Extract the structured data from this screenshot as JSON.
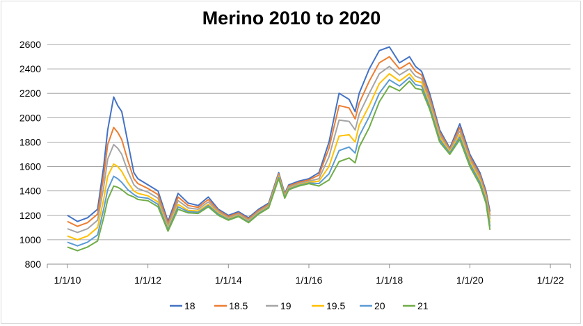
{
  "chart_data": {
    "type": "line",
    "title": "Merino 2010 to 2020",
    "xlabel": "",
    "ylabel": "",
    "ylim": [
      800,
      2600
    ],
    "y_ticks": [
      "800",
      "1000",
      "1200",
      "1400",
      "1600",
      "1800",
      "2000",
      "2200",
      "2400",
      "2600"
    ],
    "x_ticks": [
      "1/1/10",
      "1/1/12",
      "1/1/14",
      "1/1/16",
      "1/1/18",
      "1/1/20",
      "1/1/22"
    ],
    "x_tick_years": [
      0,
      2,
      4,
      6,
      8,
      10,
      12
    ],
    "xlim": [
      -0.5,
      12.5
    ],
    "grid": "horizontal",
    "legend_position": "bottom",
    "x": [
      0.0,
      0.25,
      0.5,
      0.75,
      0.9,
      1.0,
      1.15,
      1.25,
      1.35,
      1.5,
      1.65,
      1.75,
      2.0,
      2.25,
      2.5,
      2.75,
      3.0,
      3.25,
      3.5,
      3.75,
      4.0,
      4.25,
      4.5,
      4.75,
      5.0,
      5.25,
      5.4,
      5.5,
      5.75,
      6.0,
      6.25,
      6.5,
      6.75,
      7.0,
      7.15,
      7.25,
      7.5,
      7.75,
      8.0,
      8.25,
      8.5,
      8.65,
      8.8,
      9.0,
      9.25,
      9.5,
      9.75,
      10.0,
      10.25,
      10.4,
      10.5
    ],
    "series": [
      {
        "name": "18",
        "color": "#4472c4",
        "values": [
          1200,
          1150,
          1180,
          1250,
          1600,
          1900,
          2170,
          2100,
          2050,
          1800,
          1550,
          1500,
          1450,
          1400,
          1150,
          1380,
          1300,
          1280,
          1350,
          1250,
          1200,
          1230,
          1180,
          1250,
          1300,
          1550,
          1380,
          1450,
          1480,
          1500,
          1550,
          1800,
          2200,
          2150,
          2050,
          2200,
          2400,
          2550,
          2580,
          2450,
          2500,
          2420,
          2380,
          2200,
          1900,
          1750,
          1950,
          1700,
          1550,
          1400,
          1230
        ]
      },
      {
        "name": "18.5",
        "color": "#ed7d31",
        "values": [
          1150,
          1110,
          1140,
          1210,
          1520,
          1780,
          1920,
          1880,
          1820,
          1650,
          1500,
          1460,
          1420,
          1370,
          1130,
          1350,
          1280,
          1265,
          1330,
          1240,
          1190,
          1220,
          1170,
          1240,
          1290,
          1540,
          1370,
          1440,
          1470,
          1490,
          1530,
          1750,
          2100,
          2080,
          1990,
          2120,
          2300,
          2450,
          2500,
          2400,
          2450,
          2380,
          2350,
          2170,
          1880,
          1740,
          1920,
          1680,
          1530,
          1380,
          1200
        ]
      },
      {
        "name": "19",
        "color": "#a5a5a5",
        "values": [
          1090,
          1060,
          1090,
          1160,
          1430,
          1660,
          1780,
          1750,
          1700,
          1560,
          1450,
          1420,
          1390,
          1340,
          1110,
          1320,
          1260,
          1250,
          1310,
          1230,
          1180,
          1210,
          1160,
          1230,
          1280,
          1530,
          1360,
          1430,
          1460,
          1480,
          1500,
          1680,
          1980,
          1970,
          1900,
          2030,
          2200,
          2360,
          2420,
          2350,
          2400,
          2340,
          2320,
          2140,
          1860,
          1730,
          1890,
          1660,
          1510,
          1360,
          1170
        ]
      },
      {
        "name": "19.5",
        "color": "#ffc000",
        "values": [
          1030,
          1000,
          1030,
          1100,
          1330,
          1520,
          1620,
          1600,
          1560,
          1470,
          1400,
          1380,
          1360,
          1310,
          1090,
          1290,
          1240,
          1235,
          1290,
          1220,
          1170,
          1200,
          1150,
          1220,
          1270,
          1520,
          1350,
          1420,
          1450,
          1470,
          1480,
          1600,
          1850,
          1860,
          1800,
          1940,
          2100,
          2280,
          2360,
          2300,
          2360,
          2300,
          2290,
          2110,
          1840,
          1720,
          1860,
          1640,
          1490,
          1340,
          1140
        ]
      },
      {
        "name": "20",
        "color": "#5b9bd5",
        "values": [
          980,
          950,
          980,
          1040,
          1250,
          1410,
          1520,
          1500,
          1470,
          1410,
          1370,
          1350,
          1340,
          1290,
          1080,
          1270,
          1230,
          1225,
          1280,
          1210,
          1165,
          1195,
          1145,
          1215,
          1265,
          1510,
          1345,
          1415,
          1445,
          1465,
          1460,
          1540,
          1730,
          1760,
          1710,
          1850,
          2010,
          2200,
          2310,
          2260,
          2330,
          2270,
          2260,
          2090,
          1820,
          1710,
          1840,
          1620,
          1470,
          1320,
          1110
        ]
      },
      {
        "name": "21",
        "color": "#70ad47",
        "values": [
          940,
          910,
          940,
          990,
          1180,
          1330,
          1440,
          1430,
          1410,
          1370,
          1350,
          1330,
          1320,
          1270,
          1070,
          1250,
          1220,
          1215,
          1270,
          1200,
          1160,
          1190,
          1140,
          1210,
          1260,
          1500,
          1340,
          1410,
          1440,
          1460,
          1440,
          1490,
          1640,
          1670,
          1630,
          1760,
          1920,
          2130,
          2260,
          2220,
          2300,
          2240,
          2230,
          2070,
          1800,
          1700,
          1820,
          1600,
          1450,
          1300,
          1080
        ]
      }
    ]
  }
}
